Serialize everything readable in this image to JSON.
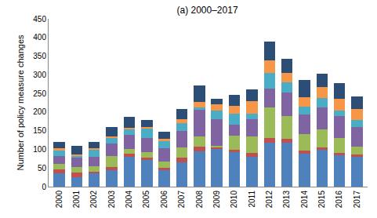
{
  "chart_data": {
    "type": "bar",
    "title": "(a) 2000–2017",
    "y_label": "Number of policy measure changes",
    "categories": [
      "2000",
      "2001",
      "2002",
      "2003",
      "2004",
      "2005",
      "2006",
      "2007",
      "2008",
      "2009",
      "2010",
      "2011",
      "2012",
      "2013",
      "2014",
      "2015",
      "2016",
      "2017"
    ],
    "stacked": true,
    "grid": false,
    "ylim": [
      0,
      450
    ],
    "yticks": [
      0,
      50,
      100,
      150,
      200,
      250,
      300,
      350,
      400,
      450
    ],
    "series": [
      {
        "color": "#4F81BD",
        "values": [
          35,
          25,
          35,
          45,
          80,
          72,
          45,
          65,
          95,
          100,
          93,
          80,
          118,
          118,
          88,
          98,
          85,
          80
        ]
      },
      {
        "color": "#C0504D",
        "values": [
          12,
          12,
          5,
          8,
          8,
          5,
          5,
          12,
          12,
          5,
          5,
          10,
          12,
          10,
          8,
          8,
          5,
          6
        ]
      },
      {
        "color": "#9BBB59",
        "values": [
          15,
          15,
          15,
          30,
          12,
          15,
          18,
          28,
          28,
          5,
          38,
          45,
          82,
          62,
          45,
          48,
          40,
          22
        ]
      },
      {
        "color": "#8064A2",
        "values": [
          20,
          25,
          25,
          32,
          38,
          38,
          35,
          45,
          72,
          70,
          30,
          45,
          50,
          62,
          52,
          58,
          60,
          52
        ]
      },
      {
        "color": "#4BACC6",
        "values": [
          15,
          5,
          18,
          15,
          15,
          25,
          20,
          20,
          5,
          25,
          30,
          15,
          42,
          28,
          22,
          25,
          15,
          18
        ]
      },
      {
        "color": "#F79646",
        "values": [
          5,
          5,
          5,
          5,
          5,
          5,
          5,
          10,
          15,
          15,
          20,
          35,
          35,
          25,
          25,
          30,
          30,
          30
        ]
      },
      {
        "color": "#2C4D75",
        "values": [
          18,
          23,
          17,
          25,
          30,
          18,
          20,
          28,
          45,
          15,
          30,
          30,
          50,
          37,
          45,
          35,
          42,
          34
        ]
      }
    ]
  }
}
